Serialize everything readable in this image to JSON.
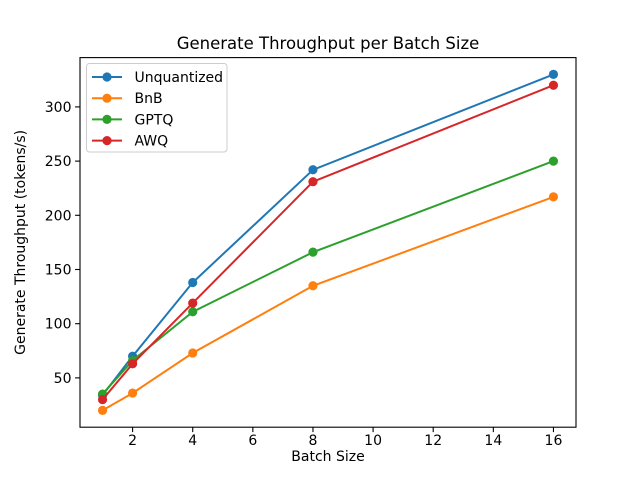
{
  "chart_data": {
    "type": "line",
    "title": "Generate Throughput per Batch Size",
    "xlabel": "Batch Size",
    "ylabel": "Generate Throughput (tokens/s)",
    "x": [
      1,
      2,
      4,
      8,
      16
    ],
    "series": [
      {
        "name": "Unquantized",
        "color": "#1f77b4",
        "values": [
          34,
          70,
          138,
          242,
          330
        ]
      },
      {
        "name": "BnB",
        "color": "#ff7f0e",
        "values": [
          20,
          36,
          73,
          135,
          217
        ]
      },
      {
        "name": "GPTQ",
        "color": "#2ca02c",
        "values": [
          35,
          66,
          111,
          166,
          250
        ]
      },
      {
        "name": "AWQ",
        "color": "#d62728",
        "values": [
          30,
          63,
          119,
          231,
          320
        ]
      }
    ],
    "xticks": [
      2,
      4,
      6,
      8,
      10,
      12,
      14,
      16
    ],
    "yticks": [
      50,
      100,
      150,
      200,
      250,
      300
    ],
    "xlim": [
      0.25,
      16.75
    ],
    "ylim": [
      4.5,
      345.5
    ],
    "legend_position": "upper left",
    "grid": false,
    "marker": "o",
    "background": "#ffffff",
    "spine_color": "#000000"
  }
}
